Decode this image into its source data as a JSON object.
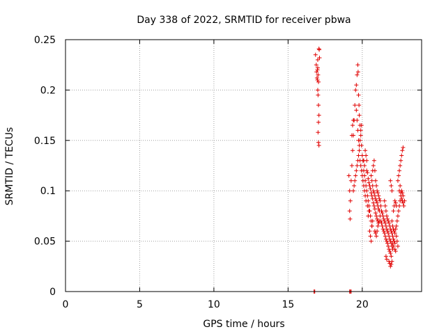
{
  "chart_data": {
    "type": "scatter",
    "title": "Day 338 of 2022, SRMTID for receiver pbwa",
    "xlabel": "GPS time / hours",
    "ylabel": "SRMTID / TECUs",
    "xlim": [
      0,
      24
    ],
    "ylim": [
      0,
      0.25
    ],
    "xticks": [
      0,
      5,
      10,
      15,
      20
    ],
    "yticks": [
      0,
      0.05,
      0.1,
      0.15,
      0.2,
      0.25
    ],
    "ytick_labels": [
      "0",
      "0.05",
      "0.1",
      "0.15",
      "0.2",
      "0.25"
    ],
    "grid": true,
    "marker": "+",
    "marker_color": "#e00000",
    "series": [
      {
        "name": "SRMTID",
        "points": [
          [
            16.75,
            0.0
          ],
          [
            16.8,
            0.0
          ],
          [
            19.15,
            0.0
          ],
          [
            19.2,
            0.0
          ],
          [
            19.25,
            0.0
          ],
          [
            16.85,
            0.235
          ],
          [
            16.9,
            0.225
          ],
          [
            16.92,
            0.218
          ],
          [
            16.95,
            0.212
          ],
          [
            16.98,
            0.22
          ],
          [
            17.0,
            0.23
          ],
          [
            17.02,
            0.215
          ],
          [
            17.05,
            0.208
          ],
          [
            17.08,
            0.241
          ],
          [
            17.1,
            0.24
          ],
          [
            17.12,
            0.232
          ],
          [
            17.0,
            0.2
          ],
          [
            17.02,
            0.195
          ],
          [
            17.05,
            0.185
          ],
          [
            17.08,
            0.175
          ],
          [
            17.05,
            0.168
          ],
          [
            17.02,
            0.158
          ],
          [
            17.05,
            0.148
          ],
          [
            17.08,
            0.145
          ],
          [
            16.98,
            0.21
          ],
          [
            17.0,
            0.222
          ],
          [
            19.1,
            0.115
          ],
          [
            19.15,
            0.1
          ],
          [
            19.2,
            0.09
          ],
          [
            19.15,
            0.08
          ],
          [
            19.18,
            0.072
          ],
          [
            19.25,
            0.11
          ],
          [
            19.3,
            0.125
          ],
          [
            19.35,
            0.14
          ],
          [
            19.4,
            0.155
          ],
          [
            19.45,
            0.17
          ],
          [
            19.5,
            0.185
          ],
          [
            19.55,
            0.2
          ],
          [
            19.6,
            0.205
          ],
          [
            19.65,
            0.215
          ],
          [
            19.7,
            0.225
          ],
          [
            19.72,
            0.218
          ],
          [
            19.75,
            0.195
          ],
          [
            19.78,
            0.185
          ],
          [
            19.8,
            0.175
          ],
          [
            19.85,
            0.165
          ],
          [
            19.9,
            0.155
          ],
          [
            19.95,
            0.145
          ],
          [
            20.0,
            0.135
          ],
          [
            20.05,
            0.13
          ],
          [
            20.1,
            0.12
          ],
          [
            20.15,
            0.115
          ],
          [
            20.2,
            0.11
          ],
          [
            20.25,
            0.105
          ],
          [
            20.3,
            0.1
          ],
          [
            20.35,
            0.095
          ],
          [
            20.4,
            0.09
          ],
          [
            20.45,
            0.085
          ],
          [
            20.5,
            0.08
          ],
          [
            20.55,
            0.075
          ],
          [
            20.6,
            0.07
          ],
          [
            20.65,
            0.065
          ],
          [
            19.6,
            0.18
          ],
          [
            19.65,
            0.17
          ],
          [
            19.7,
            0.16
          ],
          [
            19.75,
            0.15
          ],
          [
            19.8,
            0.14
          ],
          [
            19.85,
            0.13
          ],
          [
            19.9,
            0.125
          ],
          [
            19.95,
            0.12
          ],
          [
            20.0,
            0.115
          ],
          [
            20.05,
            0.11
          ],
          [
            20.1,
            0.105
          ],
          [
            20.15,
            0.1
          ],
          [
            20.2,
            0.095
          ],
          [
            20.25,
            0.09
          ],
          [
            19.4,
            0.1
          ],
          [
            19.45,
            0.105
          ],
          [
            19.5,
            0.11
          ],
          [
            19.55,
            0.115
          ],
          [
            19.6,
            0.12
          ],
          [
            19.65,
            0.125
          ],
          [
            19.7,
            0.13
          ],
          [
            19.75,
            0.135
          ],
          [
            19.8,
            0.145
          ],
          [
            19.85,
            0.15
          ],
          [
            19.9,
            0.16
          ],
          [
            19.95,
            0.165
          ],
          [
            20.3,
            0.12
          ],
          [
            20.35,
            0.118
          ],
          [
            20.4,
            0.112
          ],
          [
            20.45,
            0.108
          ],
          [
            20.5,
            0.105
          ],
          [
            20.55,
            0.102
          ],
          [
            20.6,
            0.098
          ],
          [
            20.65,
            0.095
          ],
          [
            20.7,
            0.092
          ],
          [
            20.75,
            0.088
          ],
          [
            20.8,
            0.085
          ],
          [
            20.85,
            0.082
          ],
          [
            20.9,
            0.078
          ],
          [
            20.95,
            0.075
          ],
          [
            21.0,
            0.072
          ],
          [
            21.05,
            0.07
          ],
          [
            20.6,
            0.115
          ],
          [
            20.65,
            0.11
          ],
          [
            20.7,
            0.105
          ],
          [
            20.75,
            0.1
          ],
          [
            20.8,
            0.098
          ],
          [
            20.85,
            0.095
          ],
          [
            20.9,
            0.092
          ],
          [
            20.95,
            0.09
          ],
          [
            21.0,
            0.088
          ],
          [
            21.05,
            0.085
          ],
          [
            21.1,
            0.082
          ],
          [
            21.15,
            0.08
          ],
          [
            20.7,
            0.12
          ],
          [
            20.75,
            0.125
          ],
          [
            20.8,
            0.13
          ],
          [
            20.85,
            0.12
          ],
          [
            20.9,
            0.11
          ],
          [
            20.95,
            0.105
          ],
          [
            21.0,
            0.1
          ],
          [
            21.05,
            0.098
          ],
          [
            21.1,
            0.095
          ],
          [
            21.15,
            0.092
          ],
          [
            21.2,
            0.09
          ],
          [
            21.25,
            0.085
          ],
          [
            20.5,
            0.06
          ],
          [
            20.55,
            0.055
          ],
          [
            20.6,
            0.05
          ],
          [
            20.65,
            0.065
          ],
          [
            20.7,
            0.07
          ],
          [
            20.4,
            0.075
          ],
          [
            20.45,
            0.08
          ],
          [
            20.35,
            0.085
          ],
          [
            21.2,
            0.075
          ],
          [
            21.25,
            0.07
          ],
          [
            21.3,
            0.068
          ],
          [
            21.35,
            0.065
          ],
          [
            21.4,
            0.062
          ],
          [
            21.45,
            0.06
          ],
          [
            21.5,
            0.058
          ],
          [
            21.55,
            0.055
          ],
          [
            21.6,
            0.052
          ],
          [
            21.65,
            0.05
          ],
          [
            21.7,
            0.048
          ],
          [
            21.75,
            0.045
          ],
          [
            21.8,
            0.042
          ],
          [
            21.85,
            0.04
          ],
          [
            21.9,
            0.038
          ],
          [
            21.95,
            0.035
          ],
          [
            21.3,
            0.08
          ],
          [
            21.35,
            0.078
          ],
          [
            21.4,
            0.075
          ],
          [
            21.45,
            0.072
          ],
          [
            21.5,
            0.07
          ],
          [
            21.55,
            0.068
          ],
          [
            21.6,
            0.065
          ],
          [
            21.65,
            0.062
          ],
          [
            21.7,
            0.06
          ],
          [
            21.75,
            0.058
          ],
          [
            21.8,
            0.055
          ],
          [
            21.85,
            0.052
          ],
          [
            21.9,
            0.05
          ],
          [
            21.95,
            0.048
          ],
          [
            22.0,
            0.045
          ],
          [
            22.05,
            0.042
          ],
          [
            21.5,
            0.09
          ],
          [
            21.55,
            0.085
          ],
          [
            21.6,
            0.08
          ],
          [
            21.65,
            0.075
          ],
          [
            21.7,
            0.072
          ],
          [
            21.75,
            0.07
          ],
          [
            21.8,
            0.068
          ],
          [
            21.85,
            0.065
          ],
          [
            21.9,
            0.062
          ],
          [
            21.95,
            0.06
          ],
          [
            22.0,
            0.058
          ],
          [
            22.05,
            0.055
          ],
          [
            22.1,
            0.052
          ],
          [
            22.15,
            0.05
          ],
          [
            22.2,
            0.048
          ],
          [
            21.8,
            0.03
          ],
          [
            21.85,
            0.028
          ],
          [
            21.9,
            0.025
          ],
          [
            21.95,
            0.027
          ],
          [
            22.0,
            0.03
          ],
          [
            21.6,
            0.035
          ],
          [
            21.65,
            0.032
          ],
          [
            22.0,
            0.07
          ],
          [
            22.05,
            0.065
          ],
          [
            22.1,
            0.062
          ],
          [
            22.15,
            0.06
          ],
          [
            22.2,
            0.058
          ],
          [
            22.25,
            0.062
          ],
          [
            22.3,
            0.065
          ],
          [
            22.35,
            0.07
          ],
          [
            22.4,
            0.075
          ],
          [
            22.45,
            0.08
          ],
          [
            22.5,
            0.085
          ],
          [
            22.55,
            0.09
          ],
          [
            22.6,
            0.095
          ],
          [
            22.65,
            0.1
          ],
          [
            22.7,
            0.098
          ],
          [
            22.75,
            0.095
          ],
          [
            22.1,
            0.08
          ],
          [
            22.15,
            0.085
          ],
          [
            22.2,
            0.09
          ],
          [
            22.25,
            0.088
          ],
          [
            22.3,
            0.085
          ],
          [
            21.9,
            0.11
          ],
          [
            21.95,
            0.105
          ],
          [
            22.0,
            0.1
          ],
          [
            22.4,
            0.11
          ],
          [
            22.45,
            0.115
          ],
          [
            22.5,
            0.12
          ],
          [
            22.55,
            0.125
          ],
          [
            22.6,
            0.13
          ],
          [
            22.65,
            0.135
          ],
          [
            22.7,
            0.14
          ],
          [
            22.75,
            0.143
          ],
          [
            22.5,
            0.1
          ],
          [
            22.55,
            0.105
          ],
          [
            22.6,
            0.098
          ],
          [
            22.65,
            0.092
          ],
          [
            22.7,
            0.09
          ],
          [
            22.75,
            0.088
          ],
          [
            22.8,
            0.085
          ],
          [
            22.85,
            0.09
          ],
          [
            22.3,
            0.055
          ],
          [
            22.35,
            0.05
          ],
          [
            22.4,
            0.045
          ],
          [
            22.25,
            0.04
          ],
          [
            22.2,
            0.042
          ],
          [
            22.1,
            0.045
          ],
          [
            22.05,
            0.048
          ],
          [
            20.2,
            0.14
          ],
          [
            20.25,
            0.135
          ],
          [
            20.3,
            0.13
          ],
          [
            20.15,
            0.125
          ],
          [
            20.1,
            0.13
          ],
          [
            19.35,
            0.165
          ],
          [
            19.4,
            0.17
          ],
          [
            19.3,
            0.155
          ],
          [
            20.85,
            0.06
          ],
          [
            20.9,
            0.058
          ],
          [
            20.95,
            0.055
          ],
          [
            21.0,
            0.06
          ],
          [
            21.05,
            0.065
          ],
          [
            21.1,
            0.068
          ],
          [
            21.15,
            0.07
          ]
        ]
      }
    ]
  }
}
